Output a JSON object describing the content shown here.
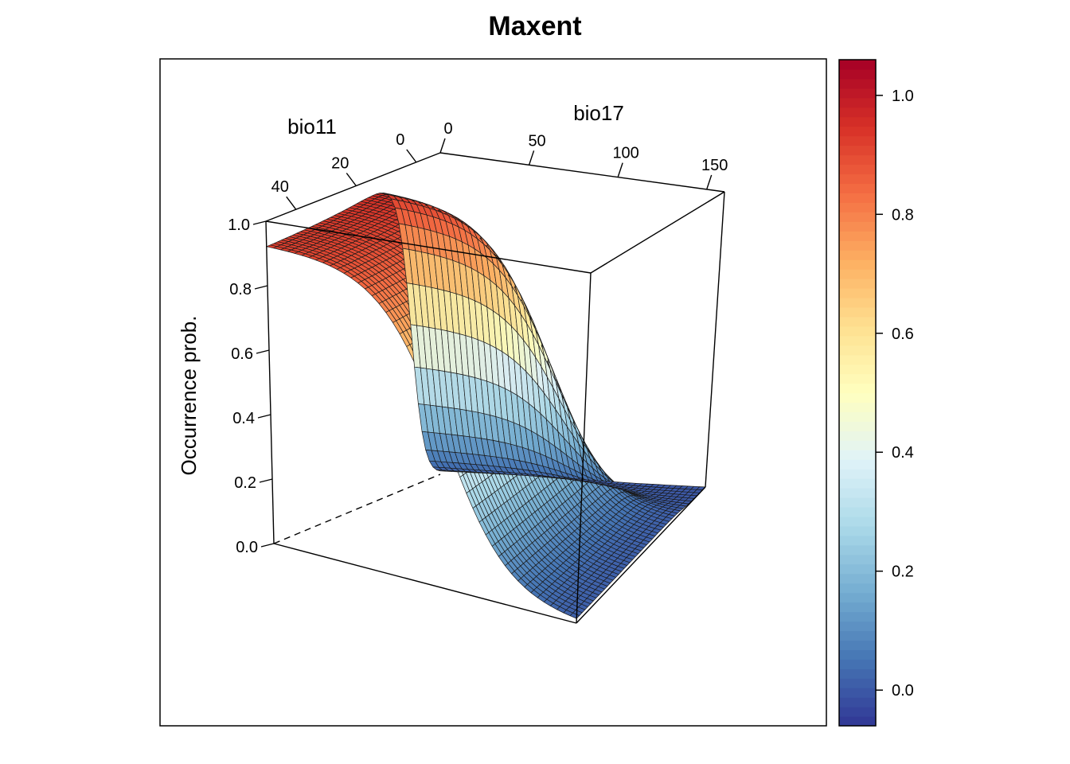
{
  "chart_data": {
    "type": "surface3d",
    "title": "Maxent",
    "x_axis": {
      "label": "bio17",
      "ticks": [
        0,
        50,
        100,
        150
      ],
      "range": [
        0,
        160
      ]
    },
    "y_axis": {
      "label": "bio11",
      "ticks": [
        0,
        20,
        40
      ],
      "range": [
        -8,
        50
      ]
    },
    "z_axis": {
      "label": "Occurrence prob.",
      "ticks": [
        "0.0",
        "0.2",
        "0.4",
        "0.6",
        "0.8",
        "1.0"
      ],
      "range": [
        0,
        1
      ]
    },
    "colorbar": {
      "ticks": [
        "0.0",
        "0.2",
        "0.4",
        "0.6",
        "0.8",
        "1.0"
      ],
      "range": [
        -0.06,
        1.06
      ],
      "palette": [
        "#313695",
        "#4575b4",
        "#74add1",
        "#abd9e9",
        "#e0f3f8",
        "#ffffbf",
        "#fee090",
        "#fdae61",
        "#f46d43",
        "#d73027",
        "#a50026"
      ]
    },
    "surface_samples": {
      "description_points": [
        {
          "bio17": 0,
          "bio11": 50,
          "prob": 0.92
        },
        {
          "bio17": 0,
          "bio11": 0,
          "prob": 1.0
        },
        {
          "bio17": 0,
          "bio11": -8,
          "prob": 0.05
        },
        {
          "bio17": 160,
          "bio11": 0,
          "prob": 0.08
        },
        {
          "bio17": 160,
          "bio11": 50,
          "prob": 0.02
        },
        {
          "bio17": 160,
          "bio11": -8,
          "prob": 0.0
        }
      ]
    }
  }
}
